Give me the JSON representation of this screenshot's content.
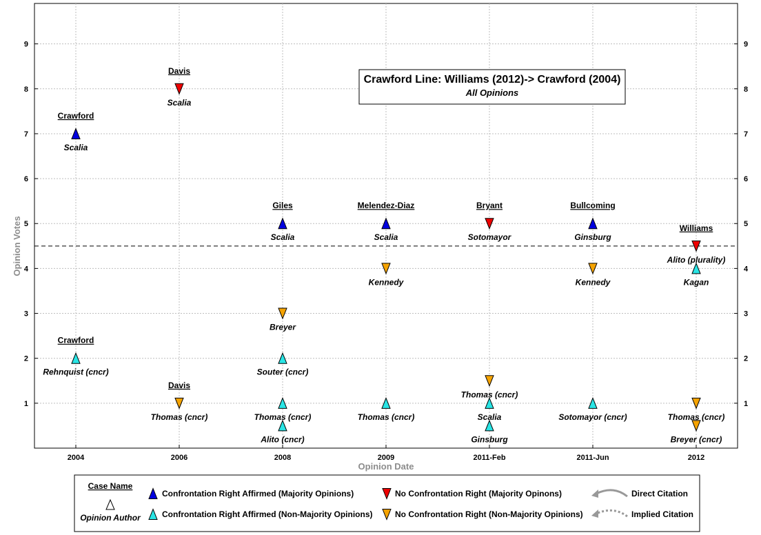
{
  "chart_data": {
    "type": "scatter",
    "title": "Crawford Line: Williams (2012)-> Crawford (2004)",
    "subtitle": "All Opinions",
    "xlabel": "Opinion Date",
    "ylabel": "Opinion Votes",
    "categories": [
      "2004",
      "2006",
      "2008",
      "2009",
      "2011-Feb",
      "2011-Jun",
      "2012"
    ],
    "y_ticks": [
      "1",
      "2",
      "3",
      "4",
      "5",
      "6",
      "7",
      "8",
      "9"
    ],
    "ylim": [
      0.0,
      9.9
    ],
    "grid": true,
    "threshold": 4.5,
    "colors": {
      "affirmed_majority": "#0000e0",
      "affirmed_non_majority": "#29e5e5",
      "no_right_majority": "#ee0000",
      "no_right_non_majority": "#f5a300"
    },
    "points": [
      {
        "x": "2004",
        "y": 7,
        "kind": "affirmed_majority",
        "case": "Crawford",
        "author": "Scalia"
      },
      {
        "x": "2004",
        "y": 2,
        "kind": "affirmed_non_majority",
        "case": "Crawford",
        "author": "Rehnquist (cncr)"
      },
      {
        "x": "2006",
        "y": 8,
        "kind": "no_right_majority",
        "case": "Davis",
        "author": "Scalia"
      },
      {
        "x": "2006",
        "y": 1,
        "kind": "no_right_non_majority",
        "case": "Davis",
        "author": "Thomas (cncr)"
      },
      {
        "x": "2008",
        "y": 5,
        "kind": "affirmed_majority",
        "case": "Giles",
        "author": "Scalia"
      },
      {
        "x": "2008",
        "y": 3,
        "kind": "no_right_non_majority",
        "case": "",
        "author": "Breyer"
      },
      {
        "x": "2008",
        "y": 2,
        "kind": "affirmed_non_majority",
        "case": "",
        "author": "Souter (cncr)"
      },
      {
        "x": "2008",
        "y": 1,
        "kind": "affirmed_non_majority",
        "case": "",
        "author": "Thomas (cncr)"
      },
      {
        "x": "2008",
        "y": 0.5,
        "kind": "affirmed_non_majority",
        "case": "",
        "author": "Alito (cncr)"
      },
      {
        "x": "2009",
        "y": 5,
        "kind": "affirmed_majority",
        "case": "Melendez-Diaz",
        "author": "Scalia"
      },
      {
        "x": "2009",
        "y": 4,
        "kind": "no_right_non_majority",
        "case": "",
        "author": "Kennedy"
      },
      {
        "x": "2009",
        "y": 1,
        "kind": "affirmed_non_majority",
        "case": "",
        "author": "Thomas (cncr)"
      },
      {
        "x": "2011-Feb",
        "y": 5,
        "kind": "no_right_majority",
        "case": "Bryant",
        "author": "Sotomayor"
      },
      {
        "x": "2011-Feb",
        "y": 1.5,
        "kind": "no_right_non_majority",
        "case": "",
        "author": "Thomas (cncr)"
      },
      {
        "x": "2011-Feb",
        "y": 1,
        "kind": "affirmed_non_majority",
        "case": "",
        "author": "Scalia"
      },
      {
        "x": "2011-Feb",
        "y": 0.5,
        "kind": "affirmed_non_majority",
        "case": "",
        "author": "Ginsburg"
      },
      {
        "x": "2011-Jun",
        "y": 5,
        "kind": "affirmed_majority",
        "case": "Bullcoming",
        "author": "Ginsburg"
      },
      {
        "x": "2011-Jun",
        "y": 4,
        "kind": "no_right_non_majority",
        "case": "",
        "author": "Kennedy"
      },
      {
        "x": "2011-Jun",
        "y": 1,
        "kind": "affirmed_non_majority",
        "case": "",
        "author": "Sotomayor (cncr)"
      },
      {
        "x": "2012",
        "y": 4.5,
        "kind": "no_right_majority",
        "case": "Williams",
        "author": "Alito (plurality)"
      },
      {
        "x": "2012",
        "y": 4,
        "kind": "affirmed_non_majority",
        "case": "",
        "author": "Kagan"
      },
      {
        "x": "2012",
        "y": 1,
        "kind": "no_right_non_majority",
        "case": "",
        "author": "Thomas (cncr)"
      },
      {
        "x": "2012",
        "y": 0.5,
        "kind": "no_right_non_majority",
        "case": "",
        "author": "Breyer (cncr)"
      }
    ],
    "legend": {
      "placement": "bottom",
      "case_name": "Case Name",
      "opinion_author": "Opinion Author",
      "affirmed_majority": "Confrontation Right Affirmed (Majority Opinions)",
      "affirmed_non_majority": "Confrontation Right Affirmed (Non-Majority Opinions)",
      "no_right_majority": "No Confrontation Right (Majority Opinons)",
      "no_right_non_majority": "No Confrontation Right (Non-Majority Opinions)",
      "direct_citation": "Direct Citation",
      "implied_citation": "Implied Citation"
    }
  }
}
